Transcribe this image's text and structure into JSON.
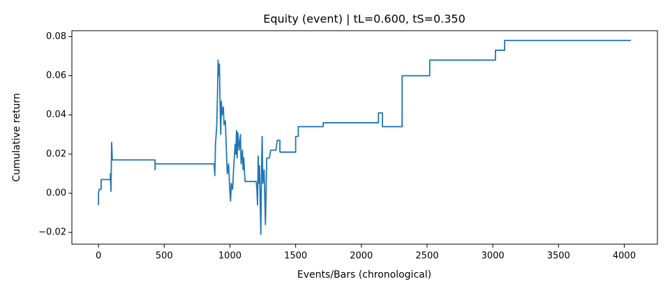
{
  "chart_data": {
    "type": "line",
    "title": "Equity (event) | tL=0.600, tS=0.350",
    "x_label": "Events/Bars (chronological)",
    "y_label": "Cumulative return",
    "xlim": [
      -202.5,
      4252.5
    ],
    "ylim": [
      -0.026,
      0.083
    ],
    "xticks": [
      0,
      500,
      1000,
      1500,
      2000,
      2500,
      3000,
      3500,
      4000
    ],
    "yticks": [
      {
        "value": -0.02,
        "label": "−0.02"
      },
      {
        "value": 0,
        "label": "0.00"
      },
      {
        "value": 0.02,
        "label": "0.02"
      },
      {
        "value": 0.04,
        "label": "0.04"
      },
      {
        "value": 0.06,
        "label": "0.06"
      },
      {
        "value": 0.08,
        "label": "0.08"
      }
    ],
    "series": [
      {
        "color": "#1f77b4",
        "x": [
          0,
          0,
          5,
          20,
          20,
          90,
          90,
          95,
          100,
          105,
          430,
          430,
          432,
          880,
          885,
          890,
          900,
          905,
          910,
          915,
          920,
          925,
          930,
          935,
          940,
          950,
          955,
          965,
          975,
          980,
          990,
          1000,
          1005,
          1010,
          1020,
          1030,
          1040,
          1045,
          1050,
          1055,
          1060,
          1070,
          1080,
          1085,
          1095,
          1100,
          1105,
          1115,
          1200,
          1205,
          1210,
          1215,
          1220,
          1225,
          1235,
          1240,
          1245,
          1250,
          1260,
          1270,
          1280,
          1300,
          1310,
          1350,
          1360,
          1380,
          1380,
          1500,
          1500,
          1520,
          1520,
          1710,
          1710,
          2130,
          2130,
          2160,
          2160,
          2310,
          2310,
          2520,
          2520,
          3020,
          3020,
          3090,
          3090,
          4050
        ],
        "values": [
          -0.006,
          0.0,
          0.002,
          0.002,
          0.007,
          0.007,
          0.01,
          0.001,
          0.026,
          0.017,
          0.017,
          0.012,
          0.015,
          0.015,
          0.009,
          0.025,
          0.035,
          0.05,
          0.068,
          0.06,
          0.066,
          0.045,
          0.03,
          0.047,
          0.04,
          0.044,
          0.035,
          0.037,
          0.018,
          0.01,
          0.015,
          0.0,
          -0.004,
          0.005,
          0.002,
          0.015,
          0.025,
          0.02,
          0.032,
          0.018,
          0.031,
          0.022,
          0.03,
          0.015,
          0.022,
          0.012,
          0.018,
          0.006,
          0.006,
          0.002,
          -0.006,
          0.019,
          0.005,
          0.014,
          -0.021,
          0.01,
          0.029,
          0.005,
          0.012,
          -0.016,
          0.018,
          0.018,
          0.022,
          0.022,
          0.027,
          0.027,
          0.021,
          0.021,
          0.029,
          0.029,
          0.034,
          0.034,
          0.036,
          0.036,
          0.041,
          0.041,
          0.034,
          0.034,
          0.06,
          0.06,
          0.068,
          0.068,
          0.073,
          0.073,
          0.078,
          0.078
        ]
      }
    ]
  }
}
